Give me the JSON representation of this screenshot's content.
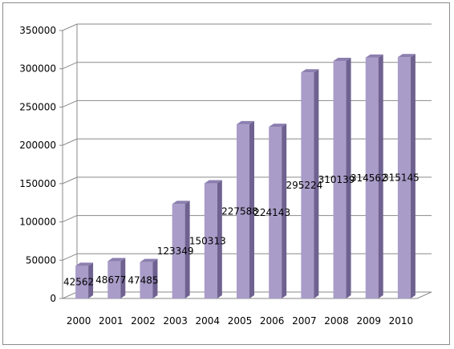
{
  "chart_data": {
    "type": "bar",
    "categories": [
      "2000",
      "2001",
      "2002",
      "2003",
      "2004",
      "2005",
      "2006",
      "2007",
      "2008",
      "2009",
      "2010"
    ],
    "values": [
      42562,
      48677,
      47485,
      123349,
      150313,
      227588,
      224143,
      295224,
      310139,
      314562,
      315145
    ],
    "data_labels": [
      "42562",
      "48677",
      "47485",
      "123349",
      "150313",
      "227588",
      "224143",
      "295224",
      "310139",
      "314562",
      "315145"
    ],
    "y_ticks": [
      "0",
      "50000",
      "100000",
      "150000",
      "200000",
      "250000",
      "300000",
      "350000"
    ],
    "ylim": [
      0,
      350000
    ],
    "title": "",
    "xlabel": "",
    "ylabel": "",
    "grid": true,
    "legend": "none",
    "colors": {
      "bar_front": "#A99CC8",
      "bar_side": "#6F6290",
      "bar_top": "#8C7FB0",
      "grid": "#8A8A8A"
    }
  }
}
